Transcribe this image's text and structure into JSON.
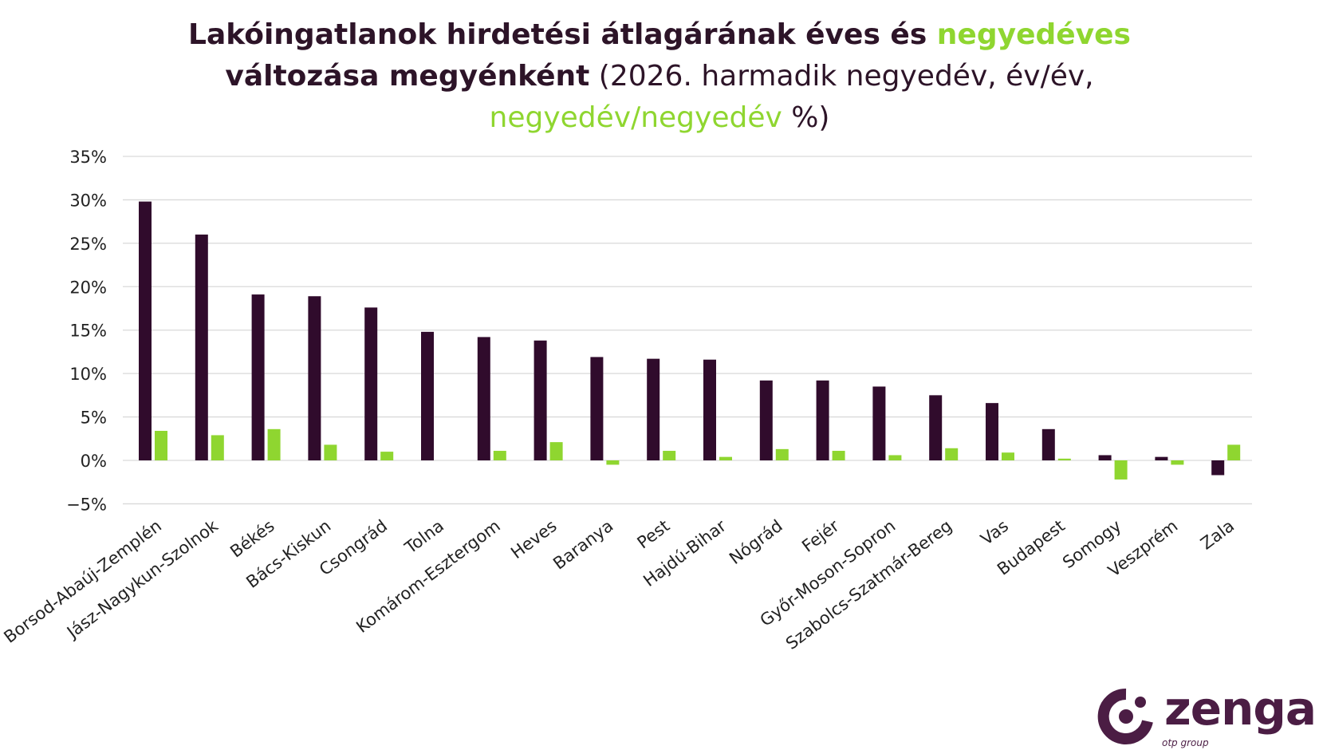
{
  "title": {
    "part1": "Lakóingatlanok hirdetési átlagárának éves és ",
    "part1_green": "negyedéves",
    "part2_bold": "változása megyénként",
    "part2_rest": " (2026. harmadik negyedév, év/év,",
    "part3_green": "negyedév/negyedév",
    "part3_rest": " %)"
  },
  "colors": {
    "yoy": "#300b2c",
    "qoq": "#8fd630",
    "grid": "#d9d9d9",
    "title_dark": "#2d1428",
    "axis_text": "#222222"
  },
  "chart_data": {
    "type": "bar",
    "categories": [
      "Borsod-Abaúj-Zemplén",
      "Jász-Nagykun-Szolnok",
      "Békés",
      "Bács-Kiskun",
      "Csongrád",
      "Tolna",
      "Komárom-Esztergom",
      "Heves",
      "Baranya",
      "Pest",
      "Hajdú-Bihar",
      "Nógrád",
      "Fejér",
      "Győr-Moson-Sopron",
      "Szabolcs-Szatmár-Bereg",
      "Vas",
      "Budapest",
      "Somogy",
      "Veszprém",
      "Zala"
    ],
    "series": [
      {
        "values": [
          29.8,
          26.0,
          19.1,
          18.9,
          17.6,
          14.8,
          14.2,
          13.8,
          11.9,
          11.7,
          11.6,
          9.2,
          9.2,
          8.5,
          7.5,
          6.6,
          3.6,
          0.6,
          0.4,
          -1.7
        ]
      },
      {
        "values": [
          3.4,
          2.9,
          3.6,
          1.8,
          1.0,
          0.0,
          1.1,
          2.1,
          -0.5,
          1.1,
          0.4,
          1.3,
          1.1,
          0.6,
          1.4,
          0.9,
          0.2,
          -2.2,
          -0.5,
          1.8
        ]
      }
    ],
    "ylim": [
      -5,
      35
    ],
    "yticks": [
      "35%",
      "30%",
      "25%",
      "20%",
      "15%",
      "10%",
      "5%",
      "0%",
      "−5%"
    ],
    "ytick_values": [
      35,
      30,
      25,
      20,
      15,
      10,
      5,
      0,
      -5
    ],
    "grid": true
  },
  "logo": {
    "word": "zenga",
    "sub": "otp group"
  }
}
